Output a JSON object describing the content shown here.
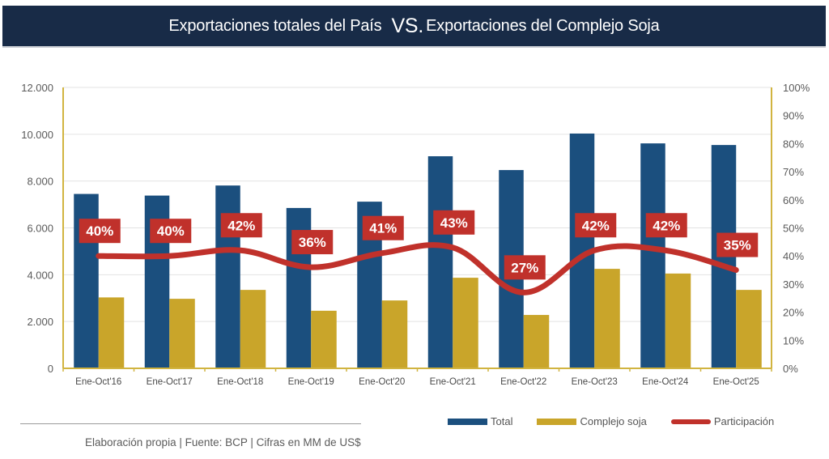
{
  "header": {
    "title_part1": "Exportaciones totales del País",
    "title_vs": "VS.",
    "title_part2": "Exportaciones del Complejo Soja"
  },
  "colors": {
    "header_bg": "#182b47",
    "total": "#1b4f7e",
    "soja": "#c9a52a",
    "participacion": "#c0312b",
    "axis": "#d1b440",
    "grid": "#e3e3e3"
  },
  "chart_data": {
    "type": "bar",
    "title": "Exportaciones totales del País VS. Exportaciones del Complejo Soja",
    "categories": [
      "Ene-Oct'16",
      "Ene-Oct'17",
      "Ene-Oct'18",
      "Ene-Oct'19",
      "Ene-Oct'20",
      "Ene-Oct'21",
      "Ene-Oct'22",
      "Ene-Oct'23",
      "Ene-Oct'24",
      "Ene-Oct'25"
    ],
    "series": [
      {
        "name": "Total",
        "type": "bar",
        "axis": "left",
        "values": [
          7450,
          7380,
          7810,
          6850,
          7120,
          9060,
          8470,
          10030,
          9610,
          9540
        ]
      },
      {
        "name": "Complejo soja",
        "type": "bar",
        "axis": "left",
        "values": [
          3030,
          2970,
          3350,
          2460,
          2900,
          3870,
          2280,
          4250,
          4050,
          3350
        ]
      },
      {
        "name": "Participación",
        "type": "line",
        "axis": "right",
        "values": [
          40,
          40,
          42,
          36,
          41,
          43,
          27,
          42,
          42,
          35
        ],
        "labels": [
          "40%",
          "40%",
          "42%",
          "36%",
          "41%",
          "43%",
          "27%",
          "42%",
          "42%",
          "35%"
        ]
      }
    ],
    "y_left": {
      "ylim": [
        0,
        12000
      ],
      "ticks": [
        0,
        2000,
        4000,
        6000,
        8000,
        10000,
        12000
      ],
      "tick_labels": [
        "0",
        "2.000",
        "4.000",
        "6.000",
        "8.000",
        "10.000",
        "12.000"
      ]
    },
    "y_right": {
      "ylim": [
        0,
        100
      ],
      "ticks": [
        0,
        10,
        20,
        30,
        40,
        50,
        60,
        70,
        80,
        90,
        100
      ],
      "tick_labels": [
        "0%",
        "10%",
        "20%",
        "30%",
        "40%",
        "50%",
        "60%",
        "70%",
        "80%",
        "90%",
        "100%"
      ]
    },
    "xlabel": "",
    "ylabel": "",
    "grid": true,
    "legend_position": "bottom-right"
  },
  "legend": [
    {
      "label": "Total",
      "kind": "bar"
    },
    {
      "label": "Complejo soja",
      "kind": "bar"
    },
    {
      "label": "Participación",
      "kind": "line"
    }
  ],
  "footer": {
    "source": "Elaboración propia | Fuente: BCP | Cifras en MM de US$"
  }
}
